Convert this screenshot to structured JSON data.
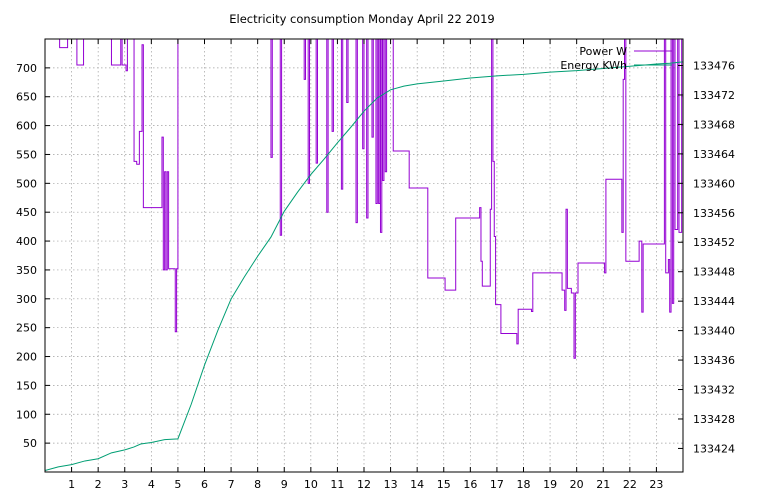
{
  "chart_data": {
    "type": "line",
    "title": "Electricity consumption Monday April 22 2019",
    "grid": true,
    "legend_position": "top-right",
    "x": {
      "range": [
        0,
        24
      ],
      "ticks": [
        1,
        2,
        3,
        4,
        5,
        6,
        7,
        8,
        9,
        10,
        11,
        12,
        13,
        14,
        15,
        16,
        17,
        18,
        19,
        20,
        21,
        22,
        23
      ]
    },
    "y_left": {
      "range": [
        0,
        750
      ],
      "ticks": [
        50,
        100,
        150,
        200,
        250,
        300,
        350,
        400,
        450,
        500,
        550,
        600,
        650,
        700
      ]
    },
    "y_right": {
      "range": [
        133420.8,
        133479.6
      ],
      "ticks": [
        133424,
        133428,
        133432,
        133436,
        133440,
        133444,
        133448,
        133452,
        133456,
        133460,
        133464,
        133468,
        133472,
        133476
      ]
    },
    "series": [
      {
        "name": "Power W",
        "axis": "left",
        "color": "#9400d3",
        "step": true,
        "points": [
          [
            0.55,
            750
          ],
          [
            0.55,
            735
          ],
          [
            0.85,
            735
          ],
          [
            0.85,
            750
          ],
          [
            1.2,
            750
          ],
          [
            1.2,
            705
          ],
          [
            1.45,
            705
          ],
          [
            1.45,
            750
          ],
          [
            2.5,
            750
          ],
          [
            2.5,
            705
          ],
          [
            2.85,
            705
          ],
          [
            2.85,
            750
          ],
          [
            2.9,
            750
          ],
          [
            2.9,
            705
          ],
          [
            3.05,
            705
          ],
          [
            3.05,
            695
          ],
          [
            3.1,
            695
          ],
          [
            3.1,
            750
          ],
          [
            3.35,
            750
          ],
          [
            3.35,
            538
          ],
          [
            3.45,
            538
          ],
          [
            3.45,
            533
          ],
          [
            3.55,
            533
          ],
          [
            3.55,
            590
          ],
          [
            3.65,
            590
          ],
          [
            3.65,
            740
          ],
          [
            3.7,
            740
          ],
          [
            3.7,
            458
          ],
          [
            4.4,
            458
          ],
          [
            4.4,
            580
          ],
          [
            4.45,
            580
          ],
          [
            4.45,
            350
          ],
          [
            4.5,
            350
          ],
          [
            4.5,
            520
          ],
          [
            4.55,
            520
          ],
          [
            4.55,
            350
          ],
          [
            4.6,
            350
          ],
          [
            4.6,
            520
          ],
          [
            4.65,
            520
          ],
          [
            4.65,
            352
          ],
          [
            4.9,
            352
          ],
          [
            4.9,
            243
          ],
          [
            4.95,
            243
          ],
          [
            4.95,
            352
          ],
          [
            5.0,
            352
          ],
          [
            5.0,
            750
          ]
        ]
      },
      {
        "name": "Power W",
        "axis": "left",
        "color": "#9400d3",
        "step": true,
        "points": [
          [
            8.5,
            750
          ],
          [
            8.5,
            545
          ],
          [
            8.55,
            545
          ],
          [
            8.55,
            750
          ],
          [
            8.85,
            750
          ],
          [
            8.85,
            410
          ],
          [
            8.9,
            410
          ],
          [
            8.9,
            750
          ],
          [
            9.75,
            750
          ],
          [
            9.75,
            680
          ],
          [
            9.8,
            680
          ],
          [
            9.8,
            750
          ],
          [
            9.9,
            750
          ],
          [
            9.9,
            500
          ],
          [
            9.95,
            500
          ],
          [
            9.95,
            750
          ],
          [
            10.2,
            750
          ],
          [
            10.2,
            535
          ],
          [
            10.25,
            535
          ],
          [
            10.25,
            750
          ],
          [
            10.6,
            750
          ],
          [
            10.6,
            450
          ],
          [
            10.65,
            450
          ],
          [
            10.65,
            750
          ],
          [
            10.8,
            750
          ],
          [
            10.8,
            590
          ],
          [
            10.85,
            590
          ],
          [
            10.85,
            750
          ],
          [
            11.15,
            750
          ],
          [
            11.15,
            490
          ],
          [
            11.2,
            490
          ],
          [
            11.2,
            750
          ],
          [
            11.35,
            750
          ],
          [
            11.35,
            640
          ],
          [
            11.4,
            640
          ],
          [
            11.4,
            750
          ],
          [
            11.7,
            750
          ],
          [
            11.7,
            432
          ],
          [
            11.75,
            432
          ],
          [
            11.75,
            750
          ],
          [
            11.95,
            750
          ],
          [
            11.95,
            560
          ],
          [
            12.0,
            560
          ],
          [
            12.0,
            750
          ],
          [
            12.1,
            750
          ],
          [
            12.1,
            440
          ],
          [
            12.15,
            440
          ],
          [
            12.15,
            750
          ],
          [
            12.3,
            750
          ],
          [
            12.3,
            580
          ],
          [
            12.35,
            580
          ],
          [
            12.35,
            750
          ],
          [
            12.45,
            750
          ],
          [
            12.45,
            465
          ],
          [
            12.5,
            465
          ],
          [
            12.5,
            750
          ],
          [
            12.55,
            750
          ],
          [
            12.55,
            465
          ],
          [
            12.6,
            465
          ],
          [
            12.6,
            750
          ],
          [
            12.62,
            750
          ],
          [
            12.62,
            415
          ],
          [
            12.67,
            415
          ],
          [
            12.67,
            750
          ],
          [
            12.7,
            750
          ],
          [
            12.7,
            505
          ],
          [
            12.75,
            505
          ],
          [
            12.75,
            750
          ],
          [
            12.8,
            750
          ],
          [
            12.8,
            520
          ],
          [
            12.85,
            520
          ],
          [
            12.85,
            750
          ],
          [
            13.1,
            750
          ],
          [
            13.1,
            556
          ],
          [
            13.7,
            556
          ],
          [
            13.7,
            492
          ],
          [
            14.4,
            492
          ],
          [
            14.4,
            336
          ],
          [
            15.05,
            336
          ],
          [
            15.05,
            315
          ],
          [
            15.45,
            315
          ],
          [
            15.45,
            440
          ],
          [
            16.35,
            440
          ],
          [
            16.35,
            458
          ],
          [
            16.4,
            458
          ],
          [
            16.4,
            365
          ],
          [
            16.45,
            365
          ],
          [
            16.45,
            322
          ],
          [
            16.75,
            322
          ],
          [
            16.75,
            455
          ],
          [
            16.8,
            455
          ],
          [
            16.8,
            750
          ],
          [
            16.85,
            750
          ],
          [
            16.85,
            538
          ],
          [
            16.9,
            538
          ],
          [
            16.9,
            408
          ],
          [
            16.95,
            408
          ],
          [
            16.95,
            290
          ],
          [
            17.15,
            290
          ],
          [
            17.15,
            240
          ],
          [
            17.75,
            240
          ],
          [
            17.75,
            222
          ],
          [
            17.8,
            222
          ],
          [
            17.8,
            282
          ],
          [
            18.3,
            282
          ],
          [
            18.3,
            278
          ],
          [
            18.35,
            278
          ],
          [
            18.35,
            345
          ],
          [
            19.45,
            345
          ],
          [
            19.45,
            315
          ],
          [
            19.55,
            315
          ],
          [
            19.55,
            280
          ],
          [
            19.6,
            280
          ],
          [
            19.6,
            455
          ],
          [
            19.65,
            455
          ],
          [
            19.65,
            318
          ],
          [
            19.8,
            318
          ],
          [
            19.8,
            310
          ],
          [
            19.9,
            310
          ],
          [
            19.9,
            197
          ],
          [
            19.95,
            197
          ],
          [
            19.95,
            310
          ],
          [
            20.05,
            310
          ],
          [
            20.05,
            362
          ],
          [
            21.05,
            362
          ],
          [
            21.05,
            345
          ],
          [
            21.1,
            345
          ],
          [
            21.1,
            507
          ],
          [
            21.7,
            507
          ],
          [
            21.7,
            415
          ],
          [
            21.75,
            415
          ],
          [
            21.75,
            680
          ],
          [
            21.8,
            680
          ],
          [
            21.8,
            750
          ],
          [
            21.85,
            750
          ],
          [
            21.85,
            365
          ],
          [
            22.35,
            365
          ],
          [
            22.35,
            400
          ],
          [
            22.45,
            400
          ],
          [
            22.45,
            277
          ],
          [
            22.5,
            277
          ],
          [
            22.5,
            395
          ],
          [
            23.3,
            395
          ],
          [
            23.3,
            750
          ],
          [
            23.35,
            750
          ],
          [
            23.35,
            345
          ],
          [
            23.45,
            345
          ],
          [
            23.45,
            368
          ],
          [
            23.5,
            368
          ],
          [
            23.5,
            277
          ],
          [
            23.55,
            277
          ],
          [
            23.55,
            750
          ],
          [
            23.6,
            750
          ],
          [
            23.6,
            292
          ],
          [
            23.65,
            292
          ],
          [
            23.65,
            750
          ],
          [
            23.7,
            750
          ],
          [
            23.7,
            420
          ],
          [
            23.8,
            420
          ],
          [
            23.8,
            750
          ],
          [
            23.85,
            750
          ],
          [
            23.85,
            415
          ],
          [
            23.95,
            415
          ],
          [
            23.95,
            750
          ],
          [
            24,
            750
          ]
        ]
      },
      {
        "name": "Energy KWh",
        "axis": "right",
        "color": "#009e73",
        "step": false,
        "points": [
          [
            0,
            133421.0
          ],
          [
            0.5,
            133421.5
          ],
          [
            1.0,
            133421.8
          ],
          [
            1.5,
            133422.3
          ],
          [
            2.0,
            133422.6
          ],
          [
            2.5,
            133423.4
          ],
          [
            3.0,
            133423.8
          ],
          [
            3.35,
            133424.2
          ],
          [
            3.6,
            133424.6
          ],
          [
            4.0,
            133424.8
          ],
          [
            4.5,
            133425.2
          ],
          [
            5.0,
            133425.3
          ],
          [
            5.5,
            133430.0
          ],
          [
            6.0,
            133435.3
          ],
          [
            6.5,
            133440.0
          ],
          [
            7.0,
            133444.3
          ],
          [
            7.5,
            133447.3
          ],
          [
            8.0,
            133450.1
          ],
          [
            8.5,
            133452.7
          ],
          [
            9.0,
            133456.2
          ],
          [
            9.5,
            133458.8
          ],
          [
            10.0,
            133461.2
          ],
          [
            10.5,
            133463.3
          ],
          [
            11.0,
            133465.5
          ],
          [
            11.5,
            133467.6
          ],
          [
            12.0,
            133469.8
          ],
          [
            12.5,
            133471.6
          ],
          [
            13.0,
            133472.7
          ],
          [
            13.5,
            133473.2
          ],
          [
            14.0,
            133473.5
          ],
          [
            15.0,
            133473.9
          ],
          [
            16.0,
            133474.3
          ],
          [
            17.0,
            133474.6
          ],
          [
            18.0,
            133474.8
          ],
          [
            19.0,
            133475.1
          ],
          [
            20.0,
            133475.3
          ],
          [
            21.0,
            133475.6
          ],
          [
            22.0,
            133475.9
          ],
          [
            23.0,
            133476.2
          ],
          [
            23.5,
            133476.3
          ],
          [
            24.0,
            133476.5
          ]
        ]
      }
    ]
  }
}
